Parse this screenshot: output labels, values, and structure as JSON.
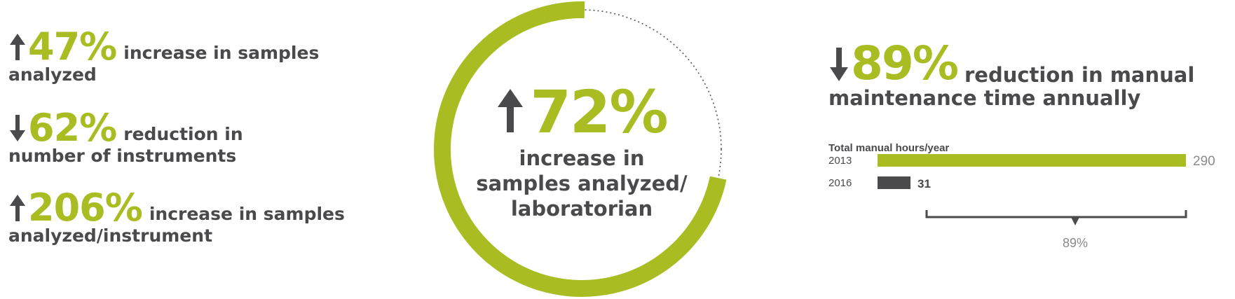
{
  "left_stats": [
    {
      "direction": "up",
      "value": "47%",
      "line1": "increase in samples",
      "line2": "analyzed"
    },
    {
      "direction": "down",
      "value": "62%",
      "line1": "reduction in",
      "line2": "number of instruments"
    },
    {
      "direction": "up",
      "value": "206%",
      "line1": "increase in samples",
      "line2": "analyzed/instrument"
    }
  ],
  "center": {
    "direction": "up",
    "value": "72%",
    "lines": [
      "increase in",
      "samples analyzed/",
      "laboratorian"
    ],
    "ring_fraction": 0.72
  },
  "right": {
    "direction": "down",
    "value": "89%",
    "line1": "reduction in manual",
    "line2": "maintenance time annually"
  },
  "chart_data": {
    "type": "bar",
    "orientation": "horizontal",
    "title": "Total manual hours/year",
    "categories": [
      "2013",
      "2016"
    ],
    "values": [
      290,
      31
    ],
    "value_labels": [
      "290",
      "31"
    ],
    "annotation": "89%",
    "xlim": [
      0,
      290
    ],
    "grid": false,
    "legend": "none"
  },
  "colors": {
    "accent": "#a9bd22",
    "dark": "#4a4a4c",
    "muted": "#8a8a8c"
  }
}
